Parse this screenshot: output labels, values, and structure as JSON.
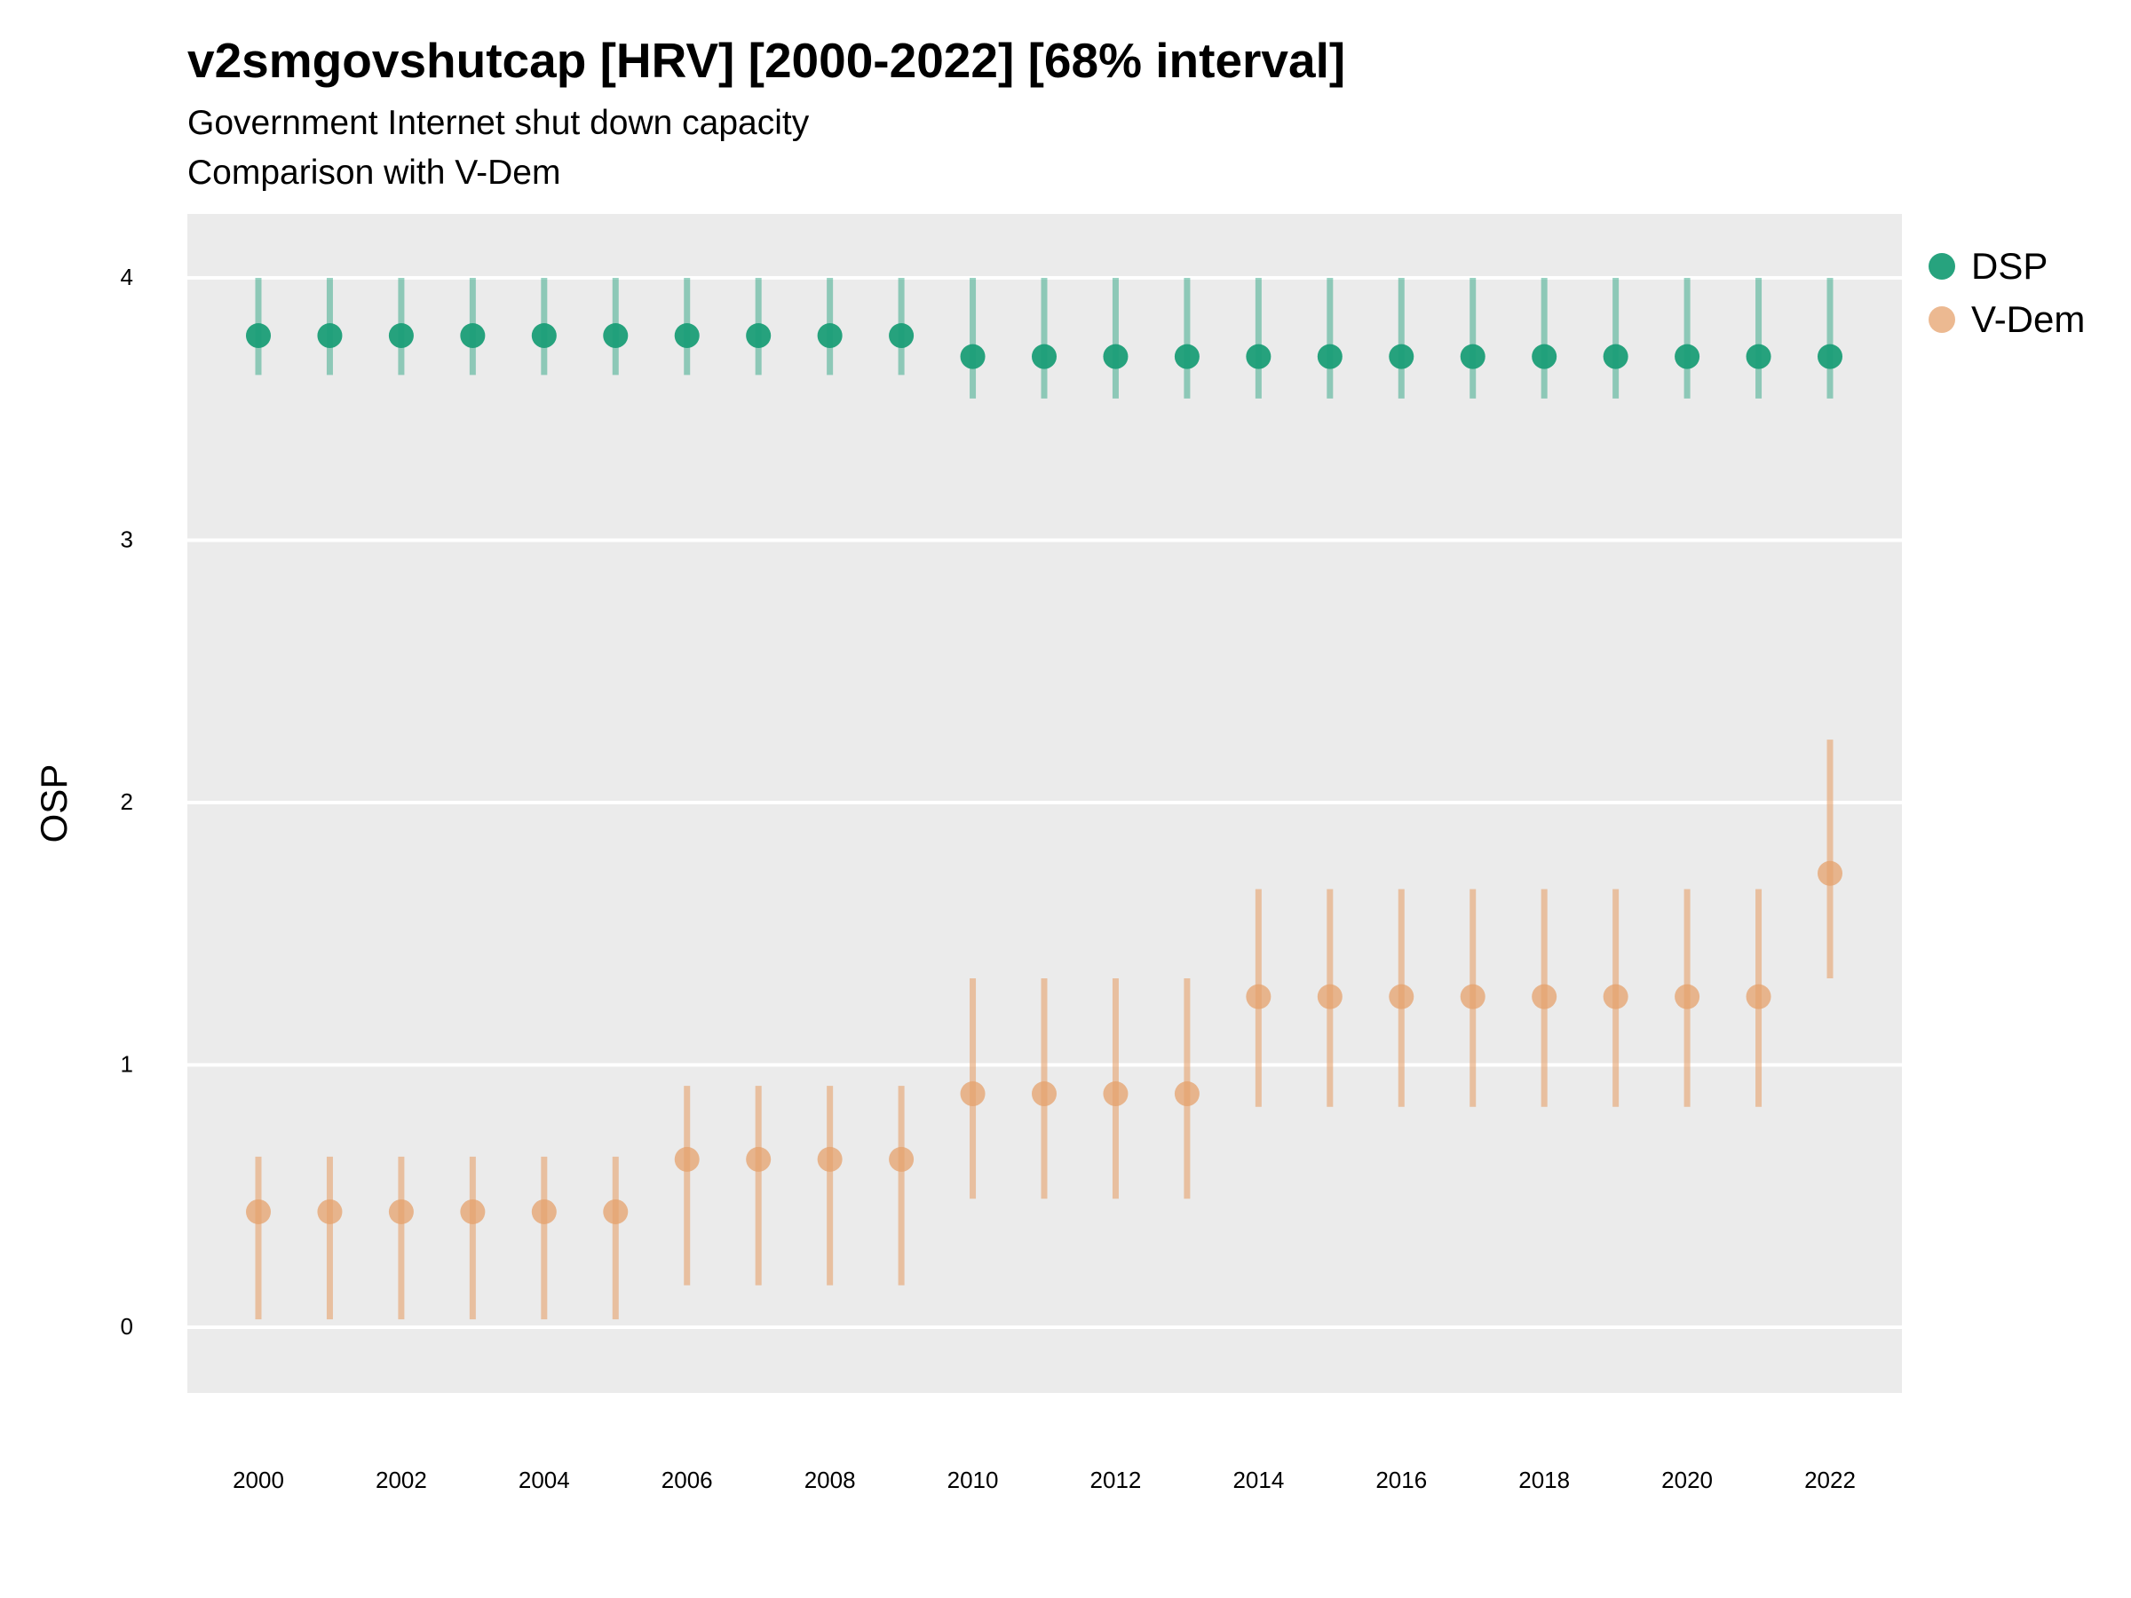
{
  "header": {
    "title": "v2smgovshutcap [HRV] [2000-2022] [68% interval]",
    "subtitle_line1": "Government Internet shut down capacity",
    "subtitle_line2": "Comparison with V-Dem"
  },
  "legend": {
    "placement": "right",
    "items": [
      {
        "label": "DSP",
        "color": "#1b9e77"
      },
      {
        "label": "V-Dem",
        "color": "#e6a16c"
      }
    ]
  },
  "chart_data": {
    "type": "scatter",
    "title": "v2smgovshutcap [HRV] [2000-2022] [68% interval]",
    "subtitle": "Government Internet shut down capacity\nComparison with V-Dem",
    "xlabel": "",
    "ylabel": "OSP",
    "xlim": [
      1999,
      2023
    ],
    "ylim": [
      -0.25,
      4.25
    ],
    "x_ticks": [
      2000,
      2002,
      2004,
      2006,
      2008,
      2010,
      2012,
      2014,
      2016,
      2018,
      2020,
      2022
    ],
    "y_ticks": [
      0,
      1,
      2,
      3,
      4
    ],
    "grid": "horizontal only",
    "panel_background": "#ebebeb",
    "legend_placement": "right",
    "x": [
      2000,
      2001,
      2002,
      2003,
      2004,
      2005,
      2006,
      2007,
      2008,
      2009,
      2010,
      2011,
      2012,
      2013,
      2014,
      2015,
      2016,
      2017,
      2018,
      2019,
      2020,
      2021,
      2022
    ],
    "series": [
      {
        "name": "DSP",
        "color": "#1b9e77",
        "values": [
          3.78,
          3.78,
          3.78,
          3.78,
          3.78,
          3.78,
          3.78,
          3.78,
          3.78,
          3.78,
          3.7,
          3.7,
          3.7,
          3.7,
          3.7,
          3.7,
          3.7,
          3.7,
          3.7,
          3.7,
          3.7,
          3.7,
          3.7
        ],
        "lower": [
          3.63,
          3.63,
          3.63,
          3.63,
          3.63,
          3.63,
          3.63,
          3.63,
          3.63,
          3.63,
          3.54,
          3.54,
          3.54,
          3.54,
          3.54,
          3.54,
          3.54,
          3.54,
          3.54,
          3.54,
          3.54,
          3.54,
          3.54
        ],
        "upper": [
          4.0,
          4.0,
          4.0,
          4.0,
          4.0,
          4.0,
          4.0,
          4.0,
          4.0,
          4.0,
          4.0,
          4.0,
          4.0,
          4.0,
          4.0,
          4.0,
          4.0,
          4.0,
          4.0,
          4.0,
          4.0,
          4.0,
          4.0
        ]
      },
      {
        "name": "V-Dem",
        "color": "#e6a16c",
        "values": [
          0.44,
          0.44,
          0.44,
          0.44,
          0.44,
          0.44,
          0.64,
          0.64,
          0.64,
          0.64,
          0.89,
          0.89,
          0.89,
          0.89,
          1.26,
          1.26,
          1.26,
          1.26,
          1.26,
          1.26,
          1.26,
          1.26,
          1.73
        ],
        "lower": [
          0.03,
          0.03,
          0.03,
          0.03,
          0.03,
          0.03,
          0.16,
          0.16,
          0.16,
          0.16,
          0.49,
          0.49,
          0.49,
          0.49,
          0.84,
          0.84,
          0.84,
          0.84,
          0.84,
          0.84,
          0.84,
          0.84,
          1.33
        ],
        "upper": [
          0.65,
          0.65,
          0.65,
          0.65,
          0.65,
          0.65,
          0.92,
          0.92,
          0.92,
          0.92,
          1.33,
          1.33,
          1.33,
          1.33,
          1.67,
          1.67,
          1.67,
          1.67,
          1.67,
          1.67,
          1.67,
          1.67,
          2.24
        ]
      }
    ]
  }
}
